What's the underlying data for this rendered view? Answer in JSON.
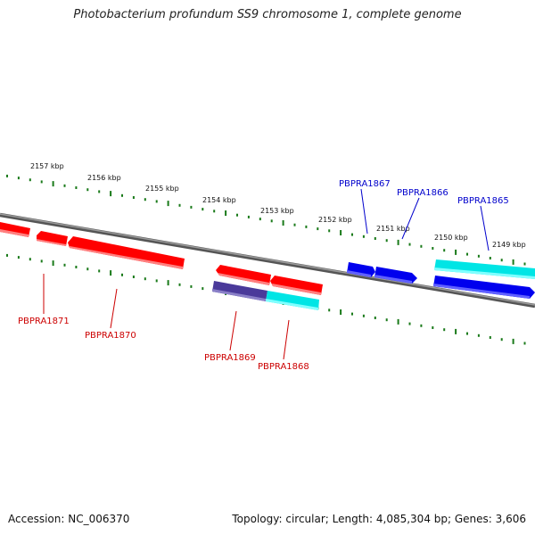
{
  "title": "Photobacterium profundum SS9 chromosome 1, complete genome",
  "footer": {
    "accession": "Accession: NC_006370",
    "summary": "Topology: circular; Length: 4,085,304 bp; Genes: 3,606"
  },
  "colors": {
    "backbone": "#7a7a7a",
    "tick": "#1a7a1a",
    "reverse_gene": "#ff0000",
    "reverse_label": "#cc0000",
    "forward_gene": "#0000ee",
    "forward_label": "#0000cc",
    "highlight_cyan": "#00e5e5",
    "highlight_purple": "#4a3a9a"
  },
  "kbp_labels": [
    "2157 kbp",
    "2156 kbp",
    "2155 kbp",
    "2154 kbp",
    "2153 kbp",
    "2152 kbp",
    "2151 kbp",
    "2150 kbp",
    "2149 kbp"
  ],
  "gene_labels": {
    "PBPRA1871": "PBPRA1871",
    "PBPRA1870": "PBPRA1870",
    "PBPRA1869": "PBPRA1869",
    "PBPRA1868": "PBPRA1868",
    "PBPRA1867": "PBPRA1867",
    "PBPRA1866": "PBPRA1866",
    "PBPRA1865": "PBPRA1865"
  }
}
